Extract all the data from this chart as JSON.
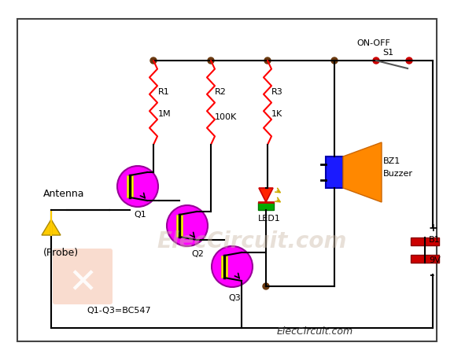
{
  "bg_color": "#ffffff",
  "border_color": "#444444",
  "wire_color": "#000000",
  "resistor_color": "#ff0000",
  "transistor_circle_color": "#ff00ff",
  "node_color": "#6B3A10",
  "led_red": "#ff2200",
  "led_green": "#00aa00",
  "buzzer_rect_color": "#1a1aff",
  "buzzer_cone_color": "#ff8800",
  "battery_color": "#cc0000",
  "switch_dot_color": "#cc0000",
  "antenna_color": "#ffcc00",
  "labels": {
    "antenna": "Antenna",
    "probe": "(Probe)",
    "Q1": "Q1",
    "Q2": "Q2",
    "Q3": "Q3",
    "Q_info": "Q1-Q3=BC547",
    "R1": "R1",
    "R1_val": "1M",
    "R2": "R2",
    "R2_val": "100K",
    "R3": "R3",
    "R3_val": "1K",
    "LED1": "LED1",
    "BZ1": "BZ1",
    "Buzzer": "Buzzer",
    "S1": "S1",
    "ON_OFF": "ON-OFF",
    "B1": "B1",
    "B1_val": "9V",
    "watermark": "ElecCircuit.com",
    "bottom_label": "ElecCircuit.com"
  }
}
